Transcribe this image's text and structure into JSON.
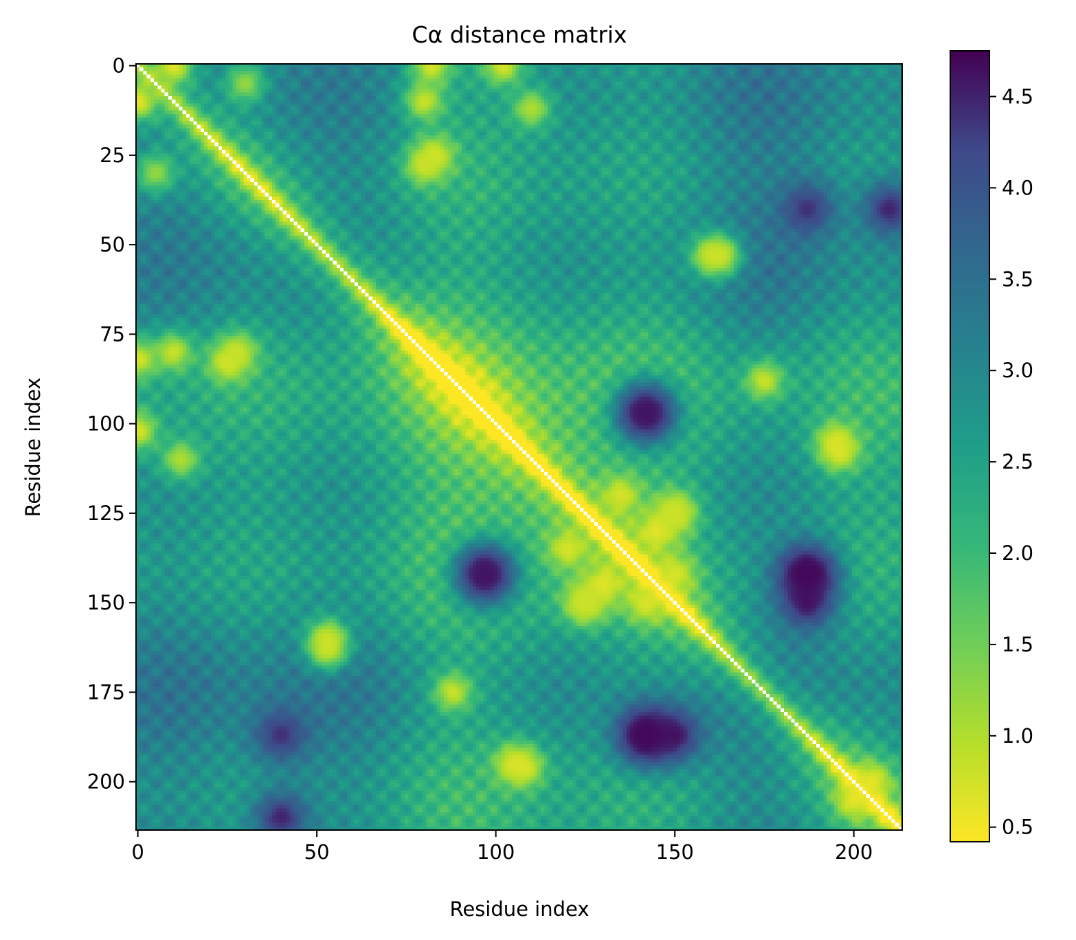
{
  "chart_data": {
    "type": "heatmap",
    "title": "Cα distance matrix",
    "xlabel": "Residue index",
    "ylabel": "Residue index",
    "n_residues": 214,
    "xlim": [
      -0.5,
      213.5
    ],
    "ylim": [
      213.5,
      -0.5
    ],
    "x_ticks": [
      0,
      50,
      100,
      150,
      200
    ],
    "y_ticks": [
      0,
      25,
      50,
      75,
      100,
      125,
      150,
      175,
      200
    ],
    "diagonal_masked": true,
    "colormap": "viridis_r",
    "colorbar": {
      "min": 0.42,
      "max": 4.75,
      "ticks": [
        0.5,
        1.0,
        1.5,
        2.0,
        2.5,
        3.0,
        3.5,
        4.0,
        4.5
      ],
      "tick_labels": [
        "0.5",
        "1.0",
        "1.5",
        "2.0",
        "2.5",
        "3.0",
        "3.5",
        "4.0",
        "4.5"
      ]
    },
    "contacts": [
      {
        "residues": [
          0,
          10
        ],
        "distance": 0.6
      },
      {
        "residues": [
          0,
          82
        ],
        "distance": 0.7
      },
      {
        "residues": [
          0,
          102
        ],
        "distance": 0.7
      },
      {
        "residues": [
          5,
          30
        ],
        "distance": 1.2
      },
      {
        "residues": [
          10,
          80
        ],
        "distance": 0.8
      },
      {
        "residues": [
          12,
          110
        ],
        "distance": 1.0
      },
      {
        "residues": [
          25,
          83
        ],
        "distance": 0.7
      },
      {
        "residues": [
          53,
          163
        ],
        "distance": 0.8
      },
      {
        "residues": [
          53,
          160
        ],
        "distance": 0.8
      },
      {
        "residues": [
          80,
          28
        ],
        "distance": 0.8
      },
      {
        "residues": [
          108,
          196
        ],
        "distance": 0.7
      },
      {
        "residues": [
          120,
          135
        ],
        "distance": 0.7
      },
      {
        "residues": [
          125,
          150
        ],
        "distance": 0.8
      },
      {
        "residues": [
          130,
          145
        ],
        "distance": 0.6
      },
      {
        "residues": [
          142,
          150
        ],
        "distance": 0.7
      },
      {
        "residues": [
          150,
          125
        ],
        "distance": 0.8
      },
      {
        "residues": [
          175,
          88
        ],
        "distance": 0.8
      },
      {
        "residues": [
          195,
          105
        ],
        "distance": 0.7
      },
      {
        "residues": [
          205,
          200
        ],
        "distance": 0.6
      }
    ],
    "far_pairs": [
      {
        "residues": [
          97,
          142
        ],
        "distance": 4.6
      },
      {
        "residues": [
          187,
          142
        ],
        "distance": 4.7
      },
      {
        "residues": [
          187,
          150
        ],
        "distance": 4.6
      },
      {
        "residues": [
          142,
          187
        ],
        "distance": 4.7
      },
      {
        "residues": [
          142,
          97
        ],
        "distance": 4.6
      },
      {
        "residues": [
          40,
          187
        ],
        "distance": 4.4
      },
      {
        "residues": [
          210,
          40
        ],
        "distance": 4.5
      }
    ]
  }
}
